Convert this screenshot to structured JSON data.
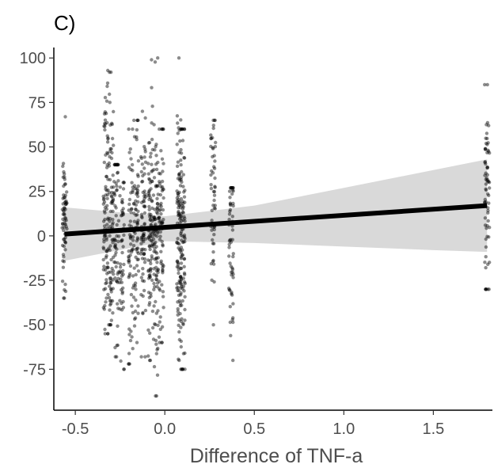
{
  "chart_data": {
    "type": "scatter",
    "title": "C)",
    "xlabel": "Difference of TNF-a",
    "ylabel": "",
    "xlim": [
      -0.62,
      1.83
    ],
    "ylim": [
      -98,
      105
    ],
    "x_ticks": [
      -0.5,
      0.0,
      0.5,
      1.0,
      1.5
    ],
    "x_tick_labels": [
      "-0.5",
      "0.0",
      "0.5",
      "1.0",
      "1.5"
    ],
    "y_ticks": [
      100,
      75,
      50,
      25,
      0,
      -25,
      -50,
      -75
    ],
    "y_tick_labels": [
      "100",
      "75",
      "50",
      "25",
      "0",
      "-25",
      "-50",
      "-75"
    ],
    "grid": false,
    "legend": "none",
    "point_color": "#000000",
    "point_opacity": 0.45,
    "point_columns": [
      {
        "x": -0.56,
        "n": 70,
        "mean": 10,
        "sd": 20,
        "min": -35,
        "max": 67
      },
      {
        "x": -0.33,
        "n": 95,
        "mean": 12,
        "sd": 34,
        "min": -55,
        "max": 93
      },
      {
        "x": -0.3,
        "n": 80,
        "mean": 5,
        "sd": 38,
        "min": -50,
        "max": 92
      },
      {
        "x": -0.27,
        "n": 60,
        "mean": 0,
        "sd": 30,
        "min": -68,
        "max": 40
      },
      {
        "x": -0.24,
        "n": 50,
        "mean": -10,
        "sd": 25,
        "min": -75,
        "max": 30
      },
      {
        "x": -0.19,
        "n": 60,
        "mean": 0,
        "sd": 30,
        "min": -72,
        "max": 60
      },
      {
        "x": -0.16,
        "n": 70,
        "mean": 5,
        "sd": 28,
        "min": -60,
        "max": 65
      },
      {
        "x": -0.12,
        "n": 75,
        "mean": 3,
        "sd": 30,
        "min": -68,
        "max": 70
      },
      {
        "x": -0.08,
        "n": 90,
        "mean": 5,
        "sd": 32,
        "min": -70,
        "max": 99
      },
      {
        "x": -0.05,
        "n": 95,
        "mean": 0,
        "sd": 35,
        "min": -90,
        "max": 100
      },
      {
        "x": -0.02,
        "n": 70,
        "mean": 2,
        "sd": 30,
        "min": -60,
        "max": 60
      },
      {
        "x": 0.08,
        "n": 100,
        "mean": 5,
        "sd": 35,
        "min": -70,
        "max": 100
      },
      {
        "x": 0.1,
        "n": 90,
        "mean": 0,
        "sd": 35,
        "min": -75,
        "max": 60
      },
      {
        "x": 0.27,
        "n": 55,
        "mean": 15,
        "sd": 30,
        "min": -50,
        "max": 65
      },
      {
        "x": 0.37,
        "n": 60,
        "mean": 0,
        "sd": 25,
        "min": -70,
        "max": 27
      },
      {
        "x": 1.8,
        "n": 70,
        "mean": 25,
        "sd": 28,
        "min": -30,
        "max": 85
      }
    ],
    "trend_line": {
      "x": [
        -0.56,
        1.8
      ],
      "y": [
        1,
        17
      ],
      "color": "#000000"
    },
    "confidence_band": {
      "x": [
        -0.56,
        0.0,
        0.5,
        1.0,
        1.5,
        1.8
      ],
      "upper": [
        16,
        11,
        17,
        27,
        37,
        43
      ],
      "lower": [
        -14,
        -3,
        -4,
        -6,
        -8,
        -9
      ],
      "color": "#d9d9d9"
    }
  }
}
